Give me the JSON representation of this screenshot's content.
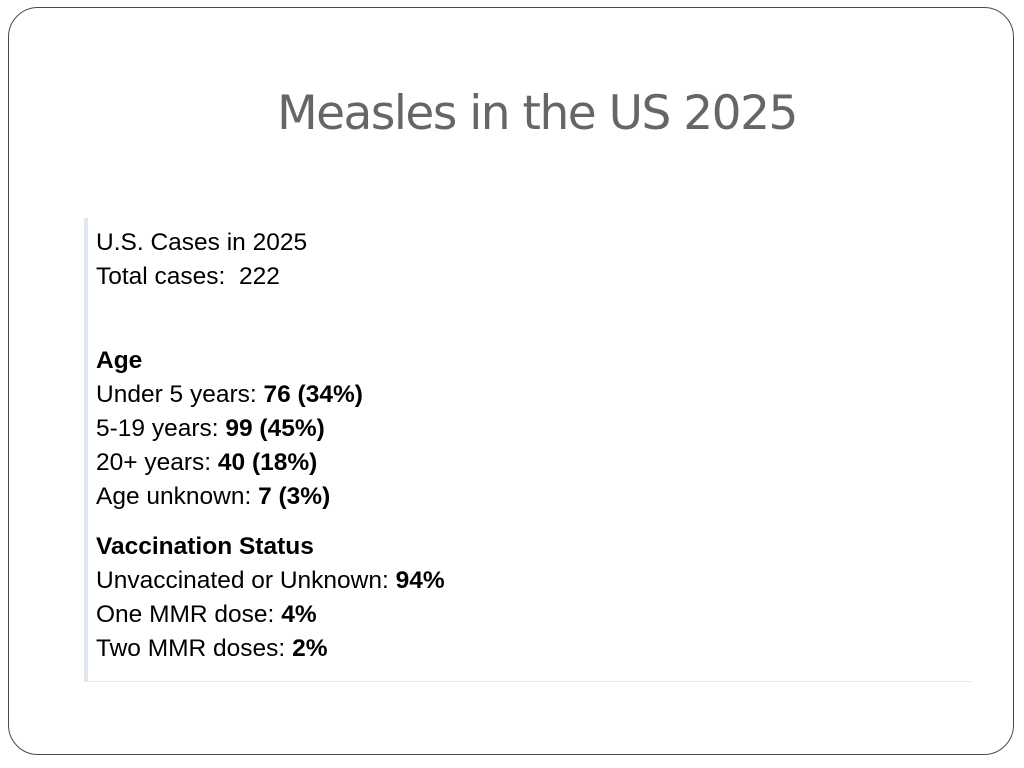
{
  "slide": {
    "title": "Measles in the US 2025"
  },
  "cases": {
    "heading": "U.S. Cases in 2025",
    "total_label": "Total cases:  ",
    "total_value": "222"
  },
  "age": {
    "heading": "Age",
    "rows": [
      {
        "label": "Under 5 years: ",
        "value": "76 (34%)"
      },
      {
        "label": "5-19 years: ",
        "value": "99 (45%)"
      },
      {
        "label": "20+ years: ",
        "value": "40 (18%)"
      },
      {
        "label": "Age unknown: ",
        "value": "7 (3%)"
      }
    ]
  },
  "vaccination": {
    "heading": "Vaccination Status",
    "rows": [
      {
        "label": "Unvaccinated or Unknown: ",
        "value": "94%"
      },
      {
        "label": "One MMR dose: ",
        "value": "4%"
      },
      {
        "label": "Two MMR doses: ",
        "value": "2%"
      }
    ]
  },
  "colors": {
    "title": "#666666",
    "frame": "#4a4a4a",
    "accent_bar": "#dfe7f2"
  }
}
